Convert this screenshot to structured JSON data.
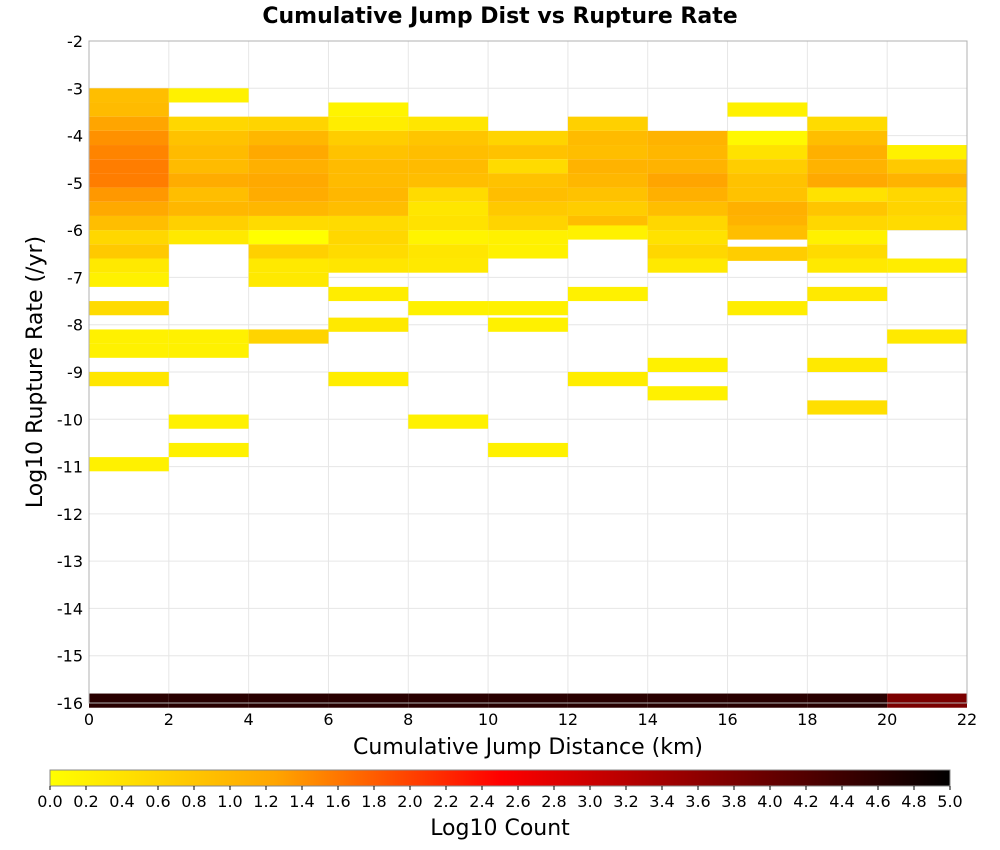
{
  "chart_data": {
    "type": "heatmap",
    "title": "Cumulative Jump Dist vs Rupture Rate",
    "xlabel": "Cumulative Jump Distance (km)",
    "ylabel": "Log10 Rupture Rate (/yr)",
    "xlim": [
      0,
      22
    ],
    "ylim": [
      -16,
      -2
    ],
    "x_bin_width": 2,
    "y_bin_height": 0.3,
    "x_ticks": [
      "0",
      "2",
      "4",
      "6",
      "8",
      "10",
      "12",
      "14",
      "16",
      "18",
      "20",
      "22"
    ],
    "y_ticks": [
      "-2",
      "-3",
      "-4",
      "-5",
      "-6",
      "-7",
      "-8",
      "-9",
      "-10",
      "-11",
      "-12",
      "-13",
      "-14",
      "-15",
      "-16"
    ],
    "colorbar": {
      "label": "Log10 Count",
      "range": [
        0,
        5
      ],
      "ticks": [
        "0.0",
        "0.2",
        "0.4",
        "0.6",
        "0.8",
        "1.0",
        "1.2",
        "1.4",
        "1.6",
        "1.8",
        "2.0",
        "2.2",
        "2.4",
        "2.6",
        "2.8",
        "3.0",
        "3.2",
        "3.4",
        "3.6",
        "3.8",
        "4.0",
        "4.2",
        "4.4",
        "4.6",
        "4.8",
        "5.0"
      ],
      "colors": [
        "#ffff00",
        "#ffa500",
        "#ff0000",
        "#800000",
        "#000000"
      ]
    },
    "cells": [
      {
        "x": 0,
        "y": -3.15,
        "v": 0.9
      },
      {
        "x": 0,
        "y": -3.45,
        "v": 0.95
      },
      {
        "x": 0,
        "y": -3.75,
        "v": 1.25
      },
      {
        "x": 0,
        "y": -4.05,
        "v": 1.4
      },
      {
        "x": 0,
        "y": -4.35,
        "v": 1.5
      },
      {
        "x": 0,
        "y": -4.65,
        "v": 1.55
      },
      {
        "x": 0,
        "y": -4.95,
        "v": 1.55
      },
      {
        "x": 0,
        "y": -5.25,
        "v": 1.35
      },
      {
        "x": 0,
        "y": -5.55,
        "v": 1.2
      },
      {
        "x": 0,
        "y": -5.85,
        "v": 0.9
      },
      {
        "x": 0,
        "y": -6.15,
        "v": 0.55
      },
      {
        "x": 0,
        "y": -6.45,
        "v": 0.75
      },
      {
        "x": 0,
        "y": -6.75,
        "v": 0.3
      },
      {
        "x": 0,
        "y": -7.05,
        "v": 0.2
      },
      {
        "x": 0,
        "y": -7.65,
        "v": 0.5
      },
      {
        "x": 0,
        "y": -8.25,
        "v": 0.2
      },
      {
        "x": 0,
        "y": -8.55,
        "v": 0.2
      },
      {
        "x": 0,
        "y": -9.15,
        "v": 0.35
      },
      {
        "x": 0,
        "y": -10.95,
        "v": 0.2
      },
      {
        "x": 2,
        "y": -3.15,
        "v": 0.2
      },
      {
        "x": 2,
        "y": -3.75,
        "v": 0.55
      },
      {
        "x": 2,
        "y": -4.05,
        "v": 0.85
      },
      {
        "x": 2,
        "y": -4.35,
        "v": 0.95
      },
      {
        "x": 2,
        "y": -4.65,
        "v": 0.95
      },
      {
        "x": 2,
        "y": -4.95,
        "v": 1.15
      },
      {
        "x": 2,
        "y": -5.25,
        "v": 0.9
      },
      {
        "x": 2,
        "y": -5.55,
        "v": 1.0
      },
      {
        "x": 2,
        "y": -5.85,
        "v": 0.65
      },
      {
        "x": 2,
        "y": -6.15,
        "v": 0.3
      },
      {
        "x": 2,
        "y": -8.25,
        "v": 0.2
      },
      {
        "x": 2,
        "y": -8.55,
        "v": 0.2
      },
      {
        "x": 2,
        "y": -10.05,
        "v": 0.2
      },
      {
        "x": 2,
        "y": -10.65,
        "v": 0.2
      },
      {
        "x": 4,
        "y": -3.75,
        "v": 0.6
      },
      {
        "x": 4,
        "y": -4.05,
        "v": 1.0
      },
      {
        "x": 4,
        "y": -4.35,
        "v": 1.2
      },
      {
        "x": 4,
        "y": -4.65,
        "v": 1.1
      },
      {
        "x": 4,
        "y": -4.95,
        "v": 1.2
      },
      {
        "x": 4,
        "y": -5.25,
        "v": 1.15
      },
      {
        "x": 4,
        "y": -5.55,
        "v": 1.0
      },
      {
        "x": 4,
        "y": -5.85,
        "v": 0.5
      },
      {
        "x": 4,
        "y": -6.15,
        "v": 0.0
      },
      {
        "x": 4,
        "y": -6.45,
        "v": 0.65
      },
      {
        "x": 4,
        "y": -6.75,
        "v": 0.3
      },
      {
        "x": 4,
        "y": -7.05,
        "v": 0.3
      },
      {
        "x": 4,
        "y": -8.25,
        "v": 0.6
      },
      {
        "x": 6,
        "y": -3.45,
        "v": 0.15
      },
      {
        "x": 6,
        "y": -3.75,
        "v": 0.25
      },
      {
        "x": 6,
        "y": -4.05,
        "v": 0.7
      },
      {
        "x": 6,
        "y": -4.35,
        "v": 0.85
      },
      {
        "x": 6,
        "y": -4.65,
        "v": 0.95
      },
      {
        "x": 6,
        "y": -4.95,
        "v": 0.95
      },
      {
        "x": 6,
        "y": -5.25,
        "v": 1.0
      },
      {
        "x": 6,
        "y": -5.55,
        "v": 0.9
      },
      {
        "x": 6,
        "y": -5.85,
        "v": 0.5
      },
      {
        "x": 6,
        "y": -6.15,
        "v": 0.55
      },
      {
        "x": 6,
        "y": -6.45,
        "v": 0.5
      },
      {
        "x": 6,
        "y": -6.75,
        "v": 0.35
      },
      {
        "x": 6,
        "y": -7.35,
        "v": 0.25
      },
      {
        "x": 6,
        "y": -8.0,
        "v": 0.3
      },
      {
        "x": 6,
        "y": -9.15,
        "v": 0.25
      },
      {
        "x": 8,
        "y": -3.75,
        "v": 0.35
      },
      {
        "x": 8,
        "y": -4.05,
        "v": 0.8
      },
      {
        "x": 8,
        "y": -4.35,
        "v": 0.9
      },
      {
        "x": 8,
        "y": -4.65,
        "v": 0.95
      },
      {
        "x": 8,
        "y": -4.95,
        "v": 0.9
      },
      {
        "x": 8,
        "y": -5.25,
        "v": 0.5
      },
      {
        "x": 8,
        "y": -5.55,
        "v": 0.35
      },
      {
        "x": 8,
        "y": -5.85,
        "v": 0.4
      },
      {
        "x": 8,
        "y": -6.15,
        "v": 0.15
      },
      {
        "x": 8,
        "y": -6.45,
        "v": 0.35
      },
      {
        "x": 8,
        "y": -6.75,
        "v": 0.3
      },
      {
        "x": 8,
        "y": -7.65,
        "v": 0.2
      },
      {
        "x": 8,
        "y": -10.05,
        "v": 0.2
      },
      {
        "x": 10,
        "y": -4.05,
        "v": 0.6
      },
      {
        "x": 10,
        "y": -4.35,
        "v": 0.85
      },
      {
        "x": 10,
        "y": -4.65,
        "v": 0.5
      },
      {
        "x": 10,
        "y": -4.95,
        "v": 0.85
      },
      {
        "x": 10,
        "y": -5.25,
        "v": 0.9
      },
      {
        "x": 10,
        "y": -5.55,
        "v": 0.75
      },
      {
        "x": 10,
        "y": -5.85,
        "v": 0.6
      },
      {
        "x": 10,
        "y": -6.15,
        "v": 0.2
      },
      {
        "x": 10,
        "y": -6.45,
        "v": 0.2
      },
      {
        "x": 10,
        "y": -7.65,
        "v": 0.2
      },
      {
        "x": 10,
        "y": -8.0,
        "v": 0.2
      },
      {
        "x": 10,
        "y": -10.65,
        "v": 0.2
      },
      {
        "x": 12,
        "y": -3.75,
        "v": 0.65
      },
      {
        "x": 12,
        "y": -4.05,
        "v": 0.95
      },
      {
        "x": 12,
        "y": -4.35,
        "v": 0.9
      },
      {
        "x": 12,
        "y": -4.65,
        "v": 1.05
      },
      {
        "x": 12,
        "y": -4.95,
        "v": 1.0
      },
      {
        "x": 12,
        "y": -5.25,
        "v": 0.85
      },
      {
        "x": 12,
        "y": -5.55,
        "v": 0.7
      },
      {
        "x": 12,
        "y": -5.85,
        "v": 0.9
      },
      {
        "x": 12,
        "y": -6.05,
        "v": 0.2
      },
      {
        "x": 12,
        "y": -7.35,
        "v": 0.2
      },
      {
        "x": 12,
        "y": -9.15,
        "v": 0.25
      },
      {
        "x": 14,
        "y": -4.05,
        "v": 1.05
      },
      {
        "x": 14,
        "y": -4.35,
        "v": 1.0
      },
      {
        "x": 14,
        "y": -4.65,
        "v": 1.05
      },
      {
        "x": 14,
        "y": -4.95,
        "v": 1.25
      },
      {
        "x": 14,
        "y": -5.25,
        "v": 1.1
      },
      {
        "x": 14,
        "y": -5.55,
        "v": 0.9
      },
      {
        "x": 14,
        "y": -5.85,
        "v": 0.55
      },
      {
        "x": 14,
        "y": -6.15,
        "v": 0.4
      },
      {
        "x": 14,
        "y": -6.45,
        "v": 0.55
      },
      {
        "x": 14,
        "y": -6.75,
        "v": 0.3
      },
      {
        "x": 14,
        "y": -8.85,
        "v": 0.2
      },
      {
        "x": 14,
        "y": -9.45,
        "v": 0.2
      },
      {
        "x": 16,
        "y": -3.45,
        "v": 0.2
      },
      {
        "x": 16,
        "y": -4.05,
        "v": 0.1
      },
      {
        "x": 16,
        "y": -4.35,
        "v": 0.4
      },
      {
        "x": 16,
        "y": -4.65,
        "v": 0.7
      },
      {
        "x": 16,
        "y": -4.95,
        "v": 0.85
      },
      {
        "x": 16,
        "y": -5.25,
        "v": 0.85
      },
      {
        "x": 16,
        "y": -5.55,
        "v": 1.1
      },
      {
        "x": 16,
        "y": -5.85,
        "v": 1.05
      },
      {
        "x": 16,
        "y": -6.05,
        "v": 0.9
      },
      {
        "x": 16,
        "y": -6.5,
        "v": 0.7
      },
      {
        "x": 16,
        "y": -7.65,
        "v": 0.25
      },
      {
        "x": 18,
        "y": -3.75,
        "v": 0.5
      },
      {
        "x": 18,
        "y": -4.05,
        "v": 0.9
      },
      {
        "x": 18,
        "y": -4.35,
        "v": 1.1
      },
      {
        "x": 18,
        "y": -4.65,
        "v": 1.05
      },
      {
        "x": 18,
        "y": -4.95,
        "v": 1.2
      },
      {
        "x": 18,
        "y": -5.25,
        "v": 0.4
      },
      {
        "x": 18,
        "y": -5.55,
        "v": 0.8
      },
      {
        "x": 18,
        "y": -5.85,
        "v": 0.55
      },
      {
        "x": 18,
        "y": -6.15,
        "v": 0.2
      },
      {
        "x": 18,
        "y": -6.45,
        "v": 0.5
      },
      {
        "x": 18,
        "y": -6.75,
        "v": 0.3
      },
      {
        "x": 18,
        "y": -7.35,
        "v": 0.3
      },
      {
        "x": 18,
        "y": -8.85,
        "v": 0.3
      },
      {
        "x": 18,
        "y": -9.75,
        "v": 0.45
      },
      {
        "x": 20,
        "y": -4.35,
        "v": 0.2
      },
      {
        "x": 20,
        "y": -4.65,
        "v": 0.75
      },
      {
        "x": 20,
        "y": -4.95,
        "v": 1.05
      },
      {
        "x": 20,
        "y": -5.25,
        "v": 0.55
      },
      {
        "x": 20,
        "y": -5.55,
        "v": 0.6
      },
      {
        "x": 20,
        "y": -5.85,
        "v": 0.5
      },
      {
        "x": 20,
        "y": -6.75,
        "v": 0.25
      },
      {
        "x": 20,
        "y": -8.25,
        "v": 0.3
      },
      {
        "x": 0,
        "y": -15.95,
        "v": 4.6
      },
      {
        "x": 2,
        "y": -15.95,
        "v": 4.6
      },
      {
        "x": 4,
        "y": -15.95,
        "v": 4.6
      },
      {
        "x": 6,
        "y": -15.95,
        "v": 4.6
      },
      {
        "x": 8,
        "y": -15.95,
        "v": 4.6
      },
      {
        "x": 10,
        "y": -15.95,
        "v": 4.6
      },
      {
        "x": 12,
        "y": -15.95,
        "v": 4.6
      },
      {
        "x": 14,
        "y": -15.95,
        "v": 4.6
      },
      {
        "x": 16,
        "y": -15.95,
        "v": 4.6
      },
      {
        "x": 18,
        "y": -15.95,
        "v": 4.6
      },
      {
        "x": 20,
        "y": -15.95,
        "v": 3.8
      }
    ]
  }
}
